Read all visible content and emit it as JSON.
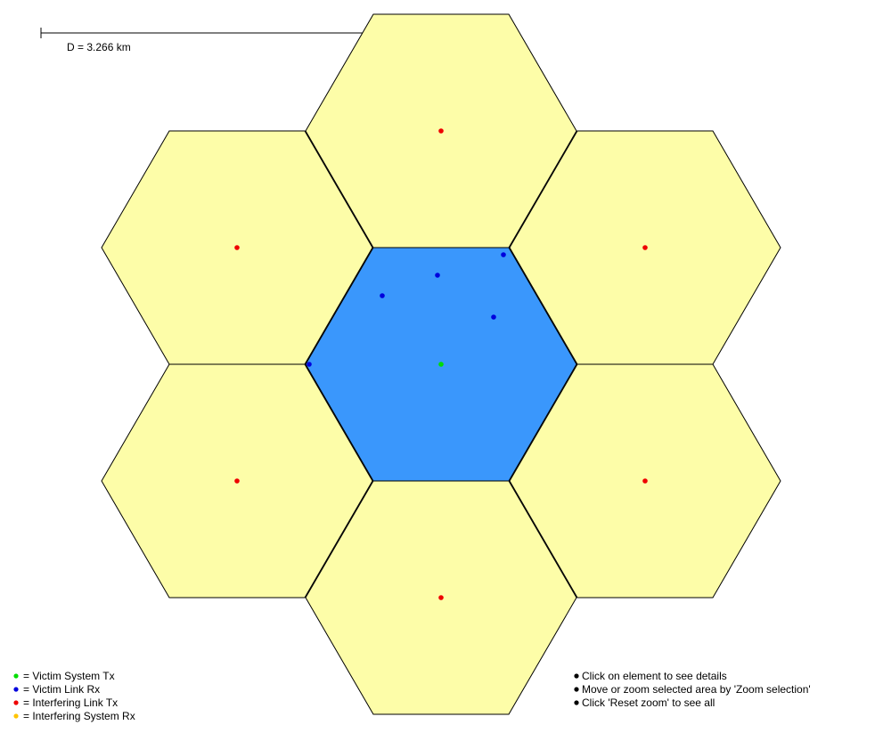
{
  "colors": {
    "victim_cell": "#3a97fc",
    "interferer_cell": "#fdfda8",
    "cell_border": "#000000",
    "victim_system_tx": "#00dd00",
    "victim_link_rx": "#0000dd",
    "interfering_link_tx": "#ee0000",
    "interfering_system_rx": "#ffc400",
    "hint_bullet": "#000000"
  },
  "scale_bar": {
    "label": "D = 3.266 km"
  },
  "legend": {
    "items": [
      {
        "symbol_color": "#00dd00",
        "label": "= Victim System Tx"
      },
      {
        "symbol_color": "#0000dd",
        "label": "= Victim Link Rx"
      },
      {
        "symbol_color": "#ee0000",
        "label": "= Interfering Link Tx"
      },
      {
        "symbol_color": "#ffc400",
        "label": "= Interfering System Rx"
      }
    ]
  },
  "hints": {
    "items": [
      {
        "label": "Click on element to see details"
      },
      {
        "label": "Move or zoom selected area by 'Zoom selection'"
      },
      {
        "label": "Click 'Reset zoom' to see all"
      }
    ]
  },
  "cells": [
    {
      "role": "victim",
      "name": "cell-center"
    },
    {
      "role": "interferer",
      "name": "cell-top"
    },
    {
      "role": "interferer",
      "name": "cell-upper-right"
    },
    {
      "role": "interferer",
      "name": "cell-lower-right"
    },
    {
      "role": "interferer",
      "name": "cell-bottom"
    },
    {
      "role": "interferer",
      "name": "cell-lower-left"
    },
    {
      "role": "interferer",
      "name": "cell-upper-left"
    }
  ]
}
